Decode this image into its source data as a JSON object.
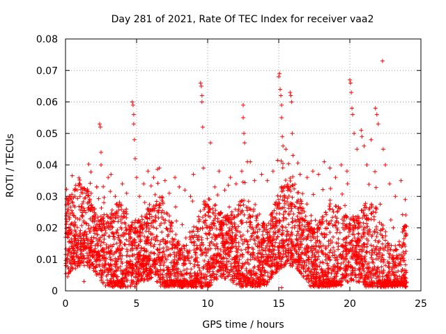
{
  "chart_data": {
    "type": "scatter",
    "title": "Day 281 of 2021, Rate Of TEC Index for receiver vaa2",
    "xlabel": "GPS time / hours",
    "ylabel": "ROTI / TECUs",
    "xlim": [
      0,
      25
    ],
    "ylim": [
      0,
      0.08
    ],
    "x_ticks": [
      "0",
      "5",
      "10",
      "15",
      "20",
      "25"
    ],
    "y_ticks": [
      "0",
      "0.01",
      "0.02",
      "0.03",
      "0.04",
      "0.05",
      "0.06",
      "0.07",
      "0.08"
    ],
    "grid": true,
    "marker": "+",
    "color": "#ff0000",
    "x_coverage": [
      0,
      24
    ],
    "series": [
      {
        "values": [
          [
            0.0,
            0.017
          ],
          [
            0.05,
            0.008
          ],
          [
            0.1,
            0.022
          ],
          [
            0.15,
            0.025
          ],
          [
            0.2,
            0.012
          ],
          [
            0.3,
            0.006
          ],
          [
            0.4,
            0.019
          ],
          [
            0.5,
            0.014
          ],
          [
            0.6,
            0.01
          ],
          [
            0.7,
            0.021
          ],
          [
            0.9,
            0.016
          ],
          [
            1.0,
            0.008
          ],
          [
            1.2,
            0.024
          ],
          [
            1.5,
            0.018
          ],
          [
            1.8,
            0.031
          ],
          [
            2.0,
            0.026
          ],
          [
            2.2,
            0.033
          ],
          [
            2.4,
            0.053
          ],
          [
            2.45,
            0.052
          ],
          [
            2.5,
            0.044
          ],
          [
            2.5,
            0.04
          ],
          [
            2.7,
            0.028
          ],
          [
            3.0,
            0.036
          ],
          [
            3.2,
            0.037
          ],
          [
            3.5,
            0.03
          ],
          [
            3.7,
            0.022
          ],
          [
            4.0,
            0.034
          ],
          [
            4.3,
            0.031
          ],
          [
            4.7,
            0.06
          ],
          [
            4.75,
            0.059
          ],
          [
            4.8,
            0.056
          ],
          [
            4.8,
            0.053
          ],
          [
            4.85,
            0.048
          ],
          [
            4.9,
            0.042
          ],
          [
            5.0,
            0.036
          ],
          [
            5.2,
            0.03
          ],
          [
            5.5,
            0.034
          ],
          [
            5.8,
            0.038
          ],
          [
            6.2,
            0.036
          ],
          [
            6.6,
            0.039
          ],
          [
            7.0,
            0.035
          ],
          [
            7.3,
            0.031
          ],
          [
            7.7,
            0.036
          ],
          [
            8.0,
            0.033
          ],
          [
            8.4,
            0.032
          ],
          [
            8.8,
            0.03
          ],
          [
            9.0,
            0.037
          ],
          [
            9.5,
            0.066
          ],
          [
            9.55,
            0.065
          ],
          [
            9.6,
            0.062
          ],
          [
            9.6,
            0.06
          ],
          [
            9.65,
            0.052
          ],
          [
            9.7,
            0.039
          ],
          [
            10.2,
            0.047
          ],
          [
            10.5,
            0.033
          ],
          [
            10.8,
            0.038
          ],
          [
            11.2,
            0.032
          ],
          [
            11.6,
            0.036
          ],
          [
            12.0,
            0.034
          ],
          [
            12.4,
            0.038
          ],
          [
            12.5,
            0.059
          ],
          [
            12.5,
            0.055
          ],
          [
            12.55,
            0.05
          ],
          [
            12.6,
            0.047
          ],
          [
            12.8,
            0.041
          ],
          [
            13.0,
            0.041
          ],
          [
            13.3,
            0.035
          ],
          [
            13.8,
            0.037
          ],
          [
            14.2,
            0.035
          ],
          [
            14.6,
            0.038
          ],
          [
            15.0,
            0.068
          ],
          [
            15.05,
            0.069
          ],
          [
            15.1,
            0.064
          ],
          [
            15.15,
            0.062
          ],
          [
            15.2,
            0.059
          ],
          [
            15.2,
            0.055
          ],
          [
            15.25,
            0.049
          ],
          [
            15.3,
            0.046
          ],
          [
            15.5,
            0.045
          ],
          [
            15.8,
            0.063
          ],
          [
            15.85,
            0.062
          ],
          [
            15.9,
            0.06
          ],
          [
            15.95,
            0.05
          ],
          [
            16.0,
            0.043
          ],
          [
            16.5,
            0.037
          ],
          [
            17.0,
            0.036
          ],
          [
            17.4,
            0.038
          ],
          [
            17.8,
            0.037
          ],
          [
            18.2,
            0.041
          ],
          [
            18.6,
            0.039
          ],
          [
            19.0,
            0.036
          ],
          [
            19.4,
            0.04
          ],
          [
            19.8,
            0.038
          ],
          [
            20.0,
            0.067
          ],
          [
            20.05,
            0.066
          ],
          [
            20.1,
            0.063
          ],
          [
            20.15,
            0.058
          ],
          [
            20.2,
            0.056
          ],
          [
            20.3,
            0.05
          ],
          [
            20.5,
            0.045
          ],
          [
            20.8,
            0.051
          ],
          [
            20.85,
            0.049
          ],
          [
            21.0,
            0.046
          ],
          [
            21.2,
            0.04
          ],
          [
            21.5,
            0.048
          ],
          [
            21.8,
            0.058
          ],
          [
            21.9,
            0.056
          ],
          [
            22.0,
            0.053
          ],
          [
            22.3,
            0.073
          ],
          [
            22.35,
            0.045
          ],
          [
            22.5,
            0.04
          ],
          [
            22.8,
            0.034
          ],
          [
            23.2,
            0.03
          ],
          [
            23.6,
            0.035
          ],
          [
            23.9,
            0.029
          ],
          [
            1.3,
            0.003
          ],
          [
            3.1,
            0.002
          ],
          [
            5.4,
            0.004
          ],
          [
            7.6,
            0.003
          ],
          [
            9.9,
            0.002
          ],
          [
            12.2,
            0.004
          ],
          [
            14.0,
            0.002
          ],
          [
            15.2,
            0.001
          ],
          [
            17.5,
            0.004
          ],
          [
            19.3,
            0.003
          ],
          [
            21.6,
            0.002
          ],
          [
            23.4,
            0.003
          ]
        ]
      }
    ]
  }
}
